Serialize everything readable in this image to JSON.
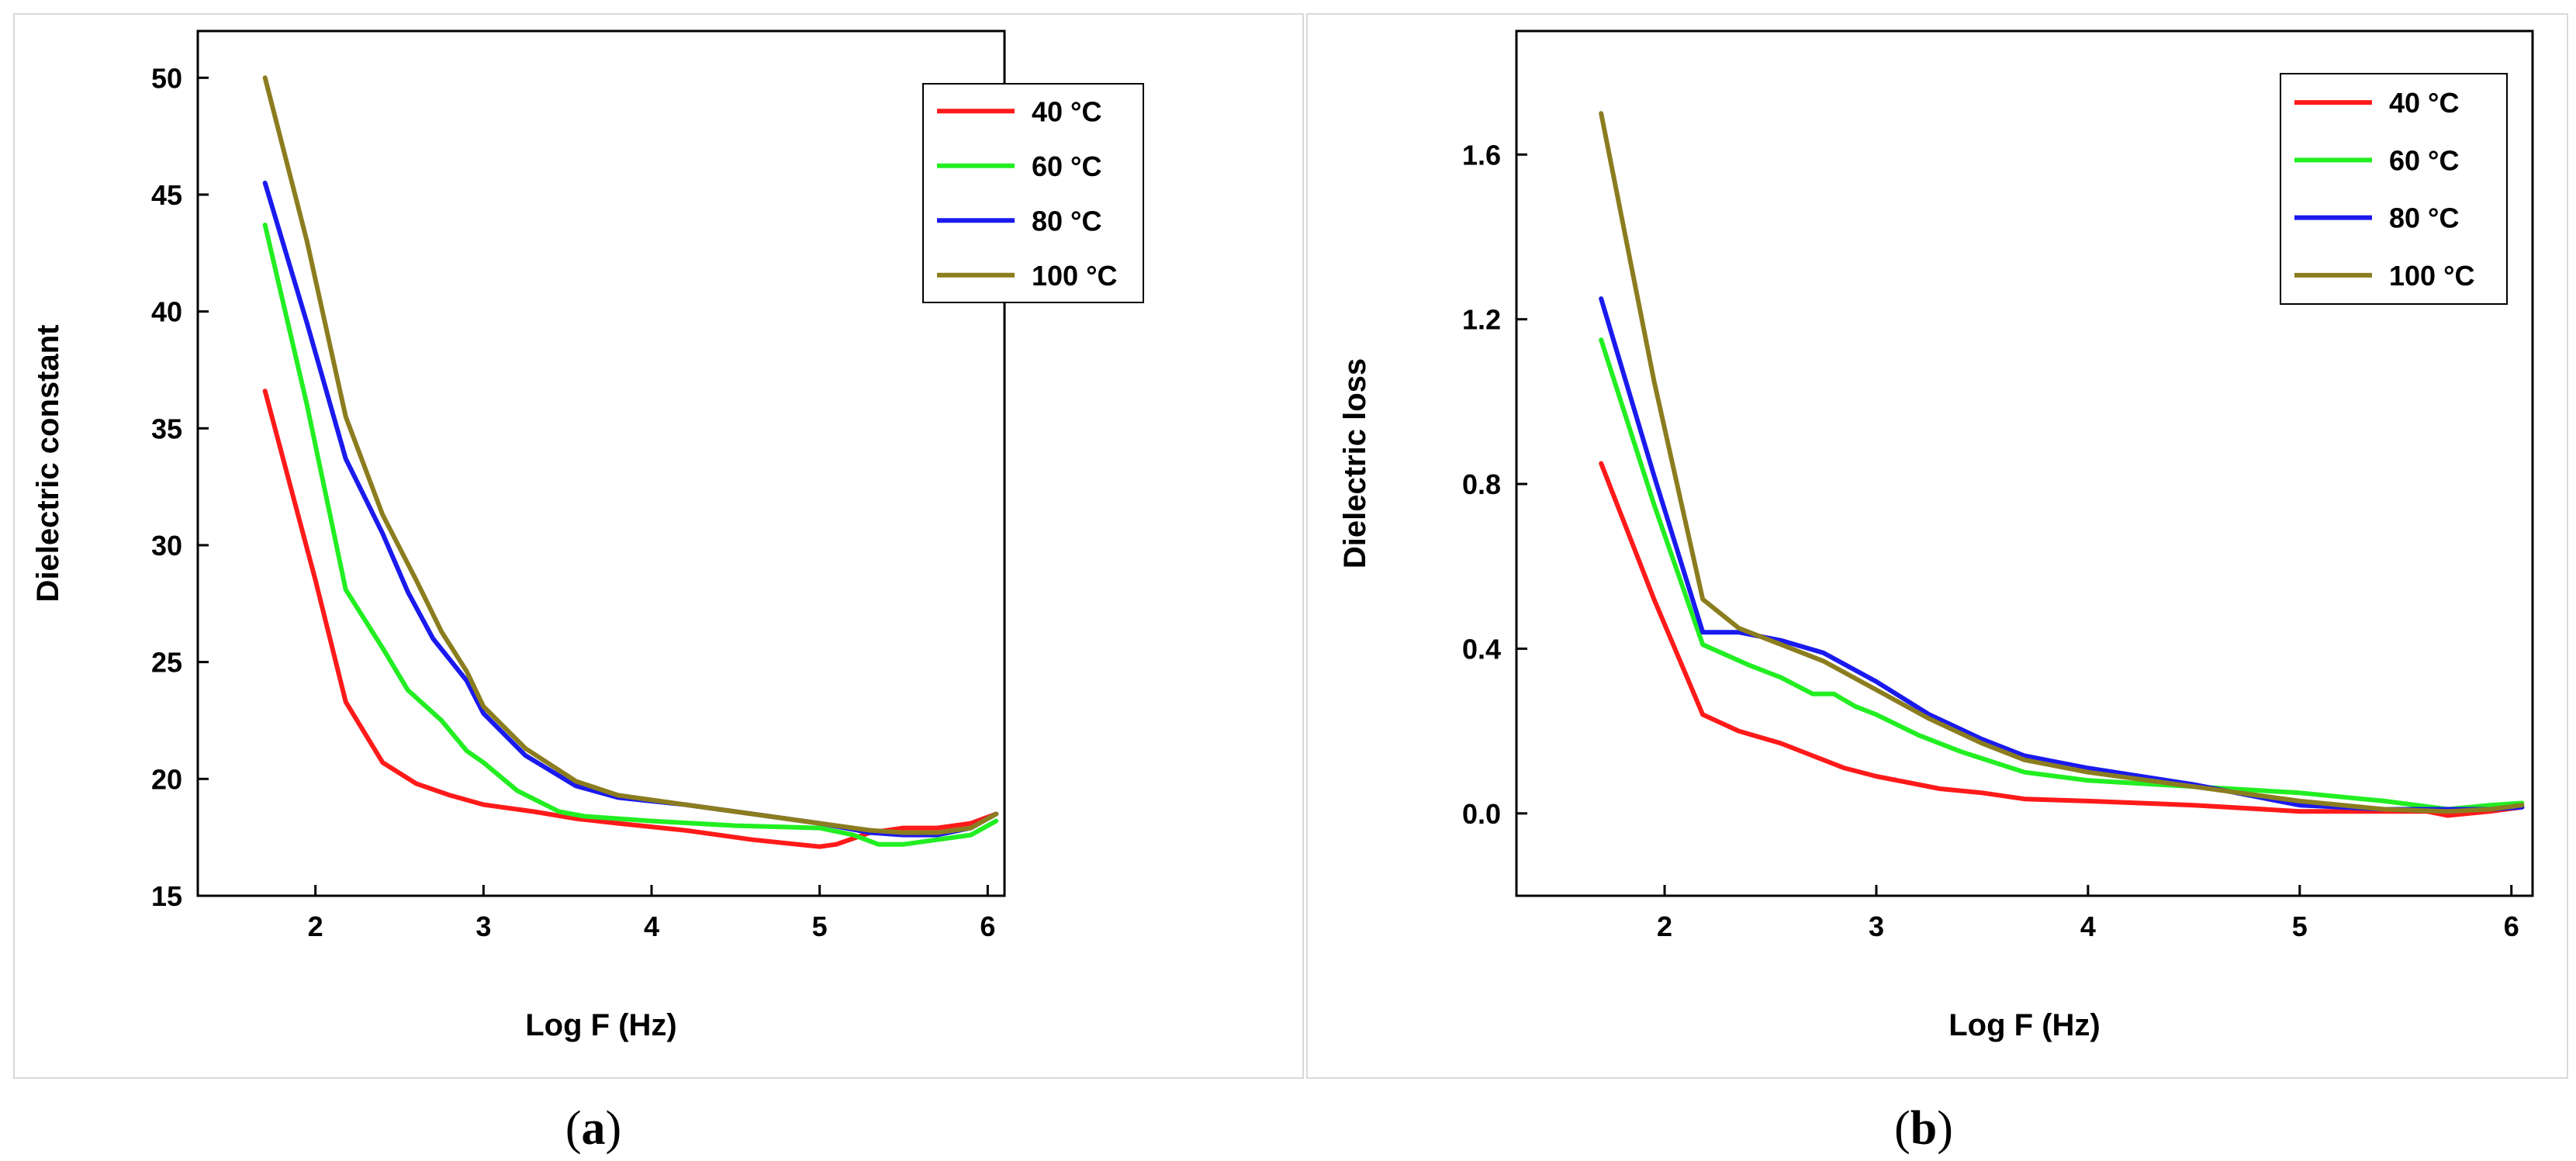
{
  "chart_data": [
    {
      "type": "line",
      "caption_open": "(",
      "caption_letter": "a",
      "caption_close": ")",
      "title": "",
      "xlabel": "Log F (Hz)",
      "ylabel": "Dielectric constant",
      "xlim": [
        1.3,
        6.1
      ],
      "ylim": [
        15,
        52
      ],
      "xticks": [
        2,
        3,
        4,
        5,
        6
      ],
      "yticks": [
        15,
        20,
        25,
        30,
        35,
        40,
        45,
        50
      ],
      "legend_position": "top-right",
      "series": [
        {
          "name": "40 °C",
          "color": "#ff1a1a",
          "x": [
            1.7,
            2.0,
            2.18,
            2.4,
            2.6,
            2.8,
            3.0,
            3.3,
            3.55,
            3.8,
            4.2,
            4.6,
            5.0,
            5.1,
            5.3,
            5.5,
            5.7,
            5.9,
            6.05
          ],
          "y": [
            36.6,
            28.5,
            23.3,
            20.7,
            19.8,
            19.3,
            18.9,
            18.6,
            18.3,
            18.1,
            17.8,
            17.4,
            17.1,
            17.2,
            17.7,
            17.9,
            17.9,
            18.1,
            18.5
          ]
        },
        {
          "name": "60 °C",
          "color": "#22ee22",
          "x": [
            1.7,
            1.95,
            2.18,
            2.4,
            2.55,
            2.75,
            2.9,
            3.0,
            3.2,
            3.45,
            3.6,
            4.0,
            4.5,
            5.0,
            5.2,
            5.35,
            5.5,
            5.7,
            5.9,
            6.05
          ],
          "y": [
            43.7,
            36.0,
            28.1,
            25.6,
            23.8,
            22.5,
            21.2,
            20.7,
            19.5,
            18.6,
            18.4,
            18.2,
            18.0,
            17.9,
            17.6,
            17.2,
            17.2,
            17.4,
            17.6,
            18.2
          ]
        },
        {
          "name": "80 °C",
          "color": "#1a1aee",
          "x": [
            1.7,
            1.95,
            2.18,
            2.4,
            2.55,
            2.7,
            2.9,
            3.0,
            3.25,
            3.55,
            3.8,
            4.2,
            4.6,
            5.0,
            5.3,
            5.5,
            5.7,
            5.9,
            6.05
          ],
          "y": [
            45.5,
            39.5,
            33.7,
            30.5,
            28.0,
            26.0,
            24.2,
            22.8,
            21.0,
            19.7,
            19.2,
            18.9,
            18.5,
            18.1,
            17.7,
            17.6,
            17.6,
            17.9,
            18.5
          ]
        },
        {
          "name": "100 °C",
          "color": "#8b7d1f",
          "x": [
            1.7,
            1.95,
            2.18,
            2.4,
            2.6,
            2.75,
            2.9,
            3.0,
            3.25,
            3.55,
            3.8,
            4.2,
            4.6,
            5.0,
            5.3,
            5.5,
            5.7,
            5.9,
            6.05
          ],
          "y": [
            50.0,
            43.0,
            35.5,
            31.3,
            28.5,
            26.3,
            24.6,
            23.1,
            21.3,
            19.9,
            19.3,
            18.9,
            18.5,
            18.1,
            17.8,
            17.7,
            17.7,
            17.9,
            18.5
          ]
        }
      ]
    },
    {
      "type": "line",
      "caption_open": "(",
      "caption_letter": "b",
      "caption_close": ")",
      "title": "",
      "xlabel": "Log F (Hz)",
      "ylabel": "Dielectric loss",
      "xlim": [
        1.3,
        6.1
      ],
      "ylim": [
        -0.2,
        1.9
      ],
      "xticks": [
        2,
        3,
        4,
        5,
        6
      ],
      "yticks": [
        0.0,
        0.4,
        0.8,
        1.2,
        1.6
      ],
      "ytick_labels": [
        "0.0",
        "0.4",
        "0.8",
        "1.2",
        "1.6"
      ],
      "legend_position": "top-right",
      "series": [
        {
          "name": "40 °C",
          "color": "#ff1a1a",
          "x": [
            1.7,
            1.95,
            2.18,
            2.35,
            2.55,
            2.7,
            2.85,
            3.0,
            3.3,
            3.5,
            3.7,
            4.0,
            4.5,
            5.0,
            5.4,
            5.6,
            5.7,
            5.9,
            6.05
          ],
          "y": [
            0.85,
            0.52,
            0.24,
            0.2,
            0.17,
            0.14,
            0.11,
            0.09,
            0.06,
            0.05,
            0.035,
            0.03,
            0.02,
            0.005,
            0.005,
            0.005,
            -0.005,
            0.005,
            0.015
          ]
        },
        {
          "name": "60 °C",
          "color": "#22ee22",
          "x": [
            1.7,
            1.95,
            2.18,
            2.4,
            2.55,
            2.7,
            2.8,
            2.9,
            3.0,
            3.2,
            3.4,
            3.7,
            4.0,
            4.5,
            5.0,
            5.4,
            5.7,
            5.9,
            6.05
          ],
          "y": [
            1.15,
            0.75,
            0.41,
            0.36,
            0.33,
            0.29,
            0.29,
            0.26,
            0.24,
            0.19,
            0.15,
            0.1,
            0.08,
            0.065,
            0.05,
            0.03,
            0.01,
            0.02,
            0.025
          ]
        },
        {
          "name": "80 °C",
          "color": "#1a1aee",
          "x": [
            1.7,
            1.95,
            2.18,
            2.35,
            2.55,
            2.75,
            3.0,
            3.25,
            3.5,
            3.7,
            4.0,
            4.5,
            5.0,
            5.4,
            5.7,
            5.9,
            6.05
          ],
          "y": [
            1.25,
            0.82,
            0.44,
            0.44,
            0.42,
            0.39,
            0.32,
            0.24,
            0.18,
            0.14,
            0.11,
            0.07,
            0.02,
            0.01,
            0.01,
            0.01,
            0.015
          ]
        },
        {
          "name": "100 °C",
          "color": "#8b7d1f",
          "x": [
            1.7,
            1.95,
            2.18,
            2.35,
            2.55,
            2.75,
            3.0,
            3.25,
            3.5,
            3.7,
            4.0,
            4.5,
            5.0,
            5.4,
            5.7,
            5.9,
            6.05
          ],
          "y": [
            1.7,
            1.05,
            0.52,
            0.45,
            0.41,
            0.37,
            0.3,
            0.23,
            0.17,
            0.13,
            0.1,
            0.065,
            0.03,
            0.01,
            0.005,
            0.01,
            0.02
          ]
        }
      ]
    }
  ]
}
